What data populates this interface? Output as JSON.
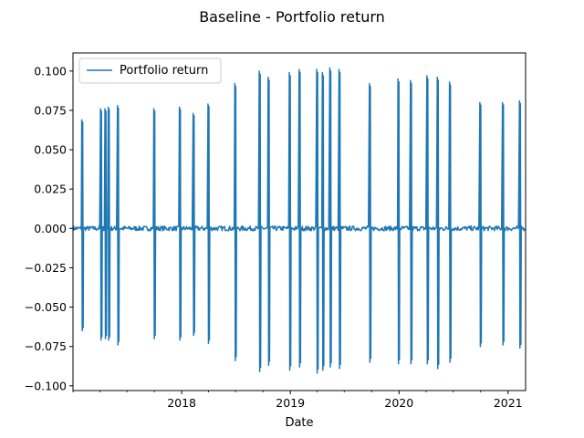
{
  "chart_data": {
    "type": "line",
    "title": "Baseline - Portfolio return",
    "xlabel": "Date",
    "ylabel": "",
    "xlim": [
      "2017-01-01",
      "2021-03-01"
    ],
    "ylim": [
      -0.103,
      0.1115
    ],
    "x_ticks": [
      {
        "date": "2018-01-01",
        "label": "2018"
      },
      {
        "date": "2019-01-01",
        "label": "2019"
      },
      {
        "date": "2020-01-01",
        "label": "2020"
      },
      {
        "date": "2021-01-01",
        "label": "2021"
      }
    ],
    "x_minor_ticks": [
      "2017-01-01",
      "2017-04-01",
      "2017-07-01",
      "2017-10-01",
      "2018-04-01",
      "2018-07-01",
      "2018-10-01",
      "2019-04-01",
      "2019-07-01",
      "2019-10-01",
      "2020-04-01",
      "2020-07-01",
      "2020-10-01"
    ],
    "y_ticks": [
      {
        "value": -0.1,
        "label": "−0.100"
      },
      {
        "value": -0.075,
        "label": "−0.075"
      },
      {
        "value": -0.05,
        "label": "−0.050"
      },
      {
        "value": -0.025,
        "label": "−0.025"
      },
      {
        "value": 0.0,
        "label": "0.000"
      },
      {
        "value": 0.025,
        "label": "0.025"
      },
      {
        "value": 0.05,
        "label": "0.050"
      },
      {
        "value": 0.075,
        "label": "0.075"
      },
      {
        "value": 0.1,
        "label": "0.100"
      }
    ],
    "grid": false,
    "legend_position": "top-left",
    "series": [
      {
        "name": "Portfolio return",
        "color": "#1f77b4",
        "spikes": [
          {
            "date": "2017-02-01",
            "up": 0.069,
            "down": -0.065
          },
          {
            "date": "2017-04-05",
            "up": 0.076,
            "down": -0.071
          },
          {
            "date": "2017-04-20",
            "up": 0.076,
            "down": -0.07
          },
          {
            "date": "2017-05-01",
            "up": 0.077,
            "down": -0.071
          },
          {
            "date": "2017-06-01",
            "up": 0.078,
            "down": -0.074
          },
          {
            "date": "2017-10-01",
            "up": 0.076,
            "down": -0.07
          },
          {
            "date": "2017-12-26",
            "up": 0.077,
            "down": -0.071
          },
          {
            "date": "2018-02-10",
            "up": 0.073,
            "down": -0.068
          },
          {
            "date": "2018-04-01",
            "up": 0.079,
            "down": -0.073
          },
          {
            "date": "2018-06-30",
            "up": 0.092,
            "down": -0.084
          },
          {
            "date": "2018-09-20",
            "up": 0.1,
            "down": -0.091
          },
          {
            "date": "2018-10-20",
            "up": 0.096,
            "down": -0.087
          },
          {
            "date": "2018-12-30",
            "up": 0.099,
            "down": -0.09
          },
          {
            "date": "2019-02-01",
            "up": 0.101,
            "down": -0.088
          },
          {
            "date": "2019-04-01",
            "up": 0.101,
            "down": -0.092
          },
          {
            "date": "2019-04-20",
            "up": 0.099,
            "down": -0.09
          },
          {
            "date": "2019-05-15",
            "up": 0.102,
            "down": -0.088
          },
          {
            "date": "2019-06-15",
            "up": 0.101,
            "down": -0.089
          },
          {
            "date": "2019-09-25",
            "up": 0.092,
            "down": -0.085
          },
          {
            "date": "2019-12-30",
            "up": 0.095,
            "down": -0.086
          },
          {
            "date": "2020-02-10",
            "up": 0.094,
            "down": -0.086
          },
          {
            "date": "2020-04-05",
            "up": 0.097,
            "down": -0.086
          },
          {
            "date": "2020-05-10",
            "up": 0.096,
            "down": -0.089
          },
          {
            "date": "2020-06-20",
            "up": 0.093,
            "down": -0.085
          },
          {
            "date": "2020-09-30",
            "up": 0.08,
            "down": -0.075
          },
          {
            "date": "2020-12-15",
            "up": 0.08,
            "down": -0.074
          },
          {
            "date": "2021-02-10",
            "up": 0.081,
            "down": -0.076
          }
        ],
        "baseline_noise_amplitude": 0.0015
      }
    ]
  }
}
